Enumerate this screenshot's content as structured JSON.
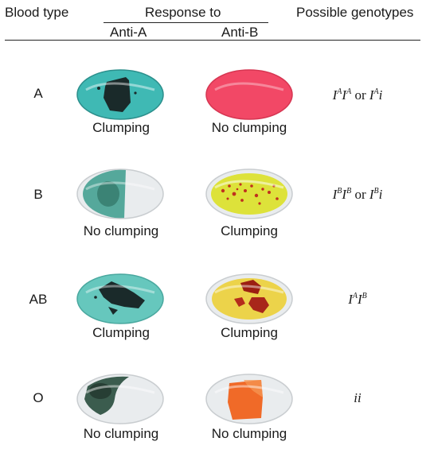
{
  "header": {
    "blood_type": "Blood type",
    "response_to": "Response to",
    "anti_a": "Anti-A",
    "anti_b": "Anti-B",
    "possible_genotypes": "Possible genotypes"
  },
  "rows": [
    {
      "type": "A",
      "anti_a": "Clumping",
      "anti_b": "No clumping",
      "genotype": {
        "a": "I",
        "a_sup": "A",
        "b": "I",
        "b_sup": "A",
        "or": "or",
        "c": "I",
        "c_sup": "A",
        "d": "i"
      }
    },
    {
      "type": "B",
      "anti_a": "No clumping",
      "anti_b": "Clumping",
      "genotype": {
        "a": "I",
        "a_sup": "B",
        "b": "I",
        "b_sup": "B",
        "or": "or",
        "c": "I",
        "c_sup": "B",
        "d": "i"
      }
    },
    {
      "type": "AB",
      "anti_a": "Clumping",
      "anti_b": "Clumping",
      "genotype": {
        "a": "I",
        "a_sup": "A",
        "b": "I",
        "b_sup": "B"
      }
    },
    {
      "type": "O",
      "anti_a": "No clumping",
      "anti_b": "No clumping",
      "genotype": {
        "text": "ii"
      }
    }
  ],
  "colors": {
    "teal": "#3fb9b4",
    "pink": "#f24866",
    "yellow": "#dde23a",
    "clump_dark": "#1a2a2a",
    "clump_red": "#c0301e",
    "orange": "#f06a28",
    "clear": "#e9ecee"
  }
}
